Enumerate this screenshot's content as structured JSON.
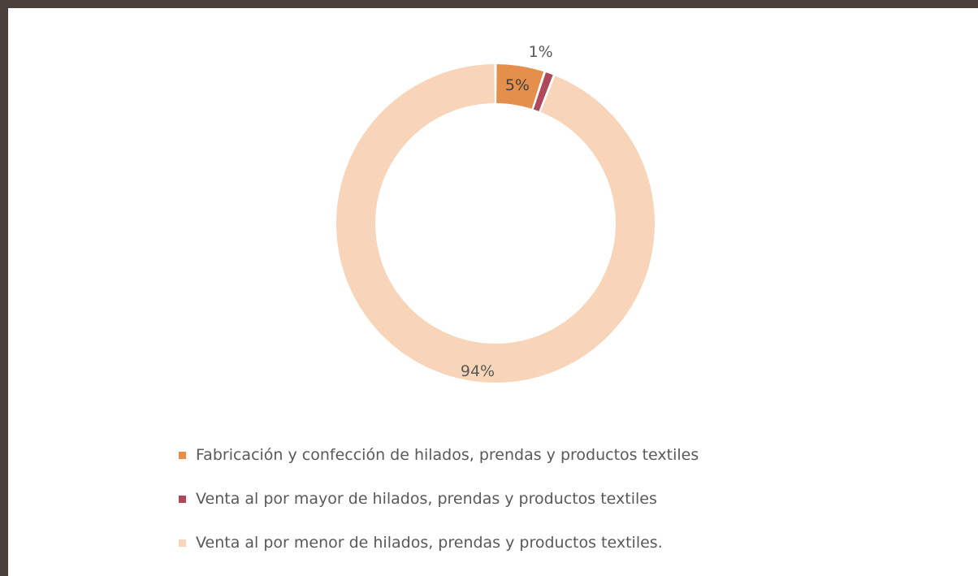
{
  "chart_data": {
    "type": "pie",
    "variant": "doughnut",
    "title": "",
    "categories": [
      "Fabricación y confección de hilados, prendas y productos textiles",
      "Venta al por mayor de hilados, prendas y productos textiles",
      "Venta al por menor de hilados, prendas y productos textiles."
    ],
    "values": [
      5,
      1,
      94
    ],
    "value_labels": [
      "5%",
      "1%",
      "94%"
    ],
    "colors": [
      "#e48f4c",
      "#b0485b",
      "#f8d5b8"
    ],
    "legend_position": "bottom"
  }
}
